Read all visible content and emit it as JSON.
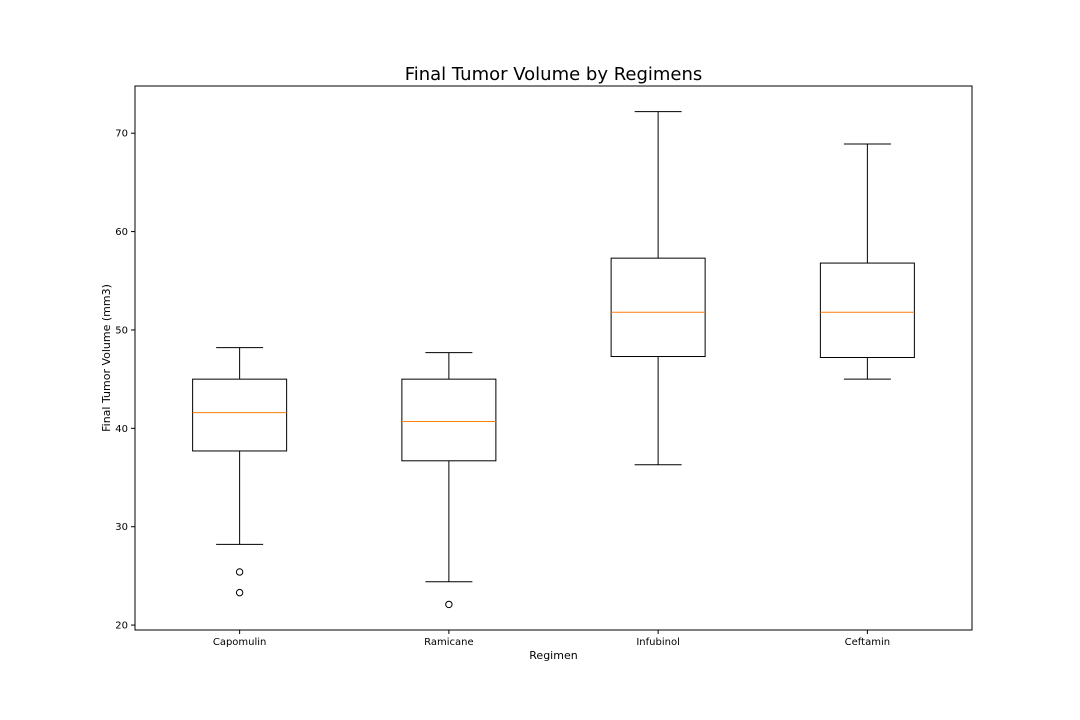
{
  "chart_data": {
    "type": "box",
    "title": "Final Tumor Volume by Regimens",
    "xlabel": "Regimen",
    "ylabel": "Final Tumor Volume (mm3)",
    "ylim": [
      19.5,
      74.8
    ],
    "yticks": [
      20,
      30,
      40,
      50,
      60,
      70
    ],
    "grid": false,
    "categories": [
      "Capomulin",
      "Ramicane",
      "Infubinol",
      "Ceftamin"
    ],
    "boxes": [
      {
        "whisker_low": 28.2,
        "q1": 37.7,
        "median": 41.6,
        "q3": 45.0,
        "whisker_high": 48.2,
        "outliers": [
          25.4,
          23.3
        ]
      },
      {
        "whisker_low": 24.4,
        "q1": 36.7,
        "median": 40.7,
        "q3": 45.0,
        "whisker_high": 47.7,
        "outliers": [
          22.1
        ]
      },
      {
        "whisker_low": 36.3,
        "q1": 47.3,
        "median": 51.8,
        "q3": 57.3,
        "whisker_high": 72.2,
        "outliers": []
      },
      {
        "whisker_low": 45.0,
        "q1": 47.2,
        "median": 51.8,
        "q3": 56.8,
        "whisker_high": 68.9,
        "outliers": []
      }
    ],
    "colors": {
      "box": "#000000",
      "median": "#ff7f0e",
      "axes": "#000000",
      "background": "#ffffff"
    }
  }
}
